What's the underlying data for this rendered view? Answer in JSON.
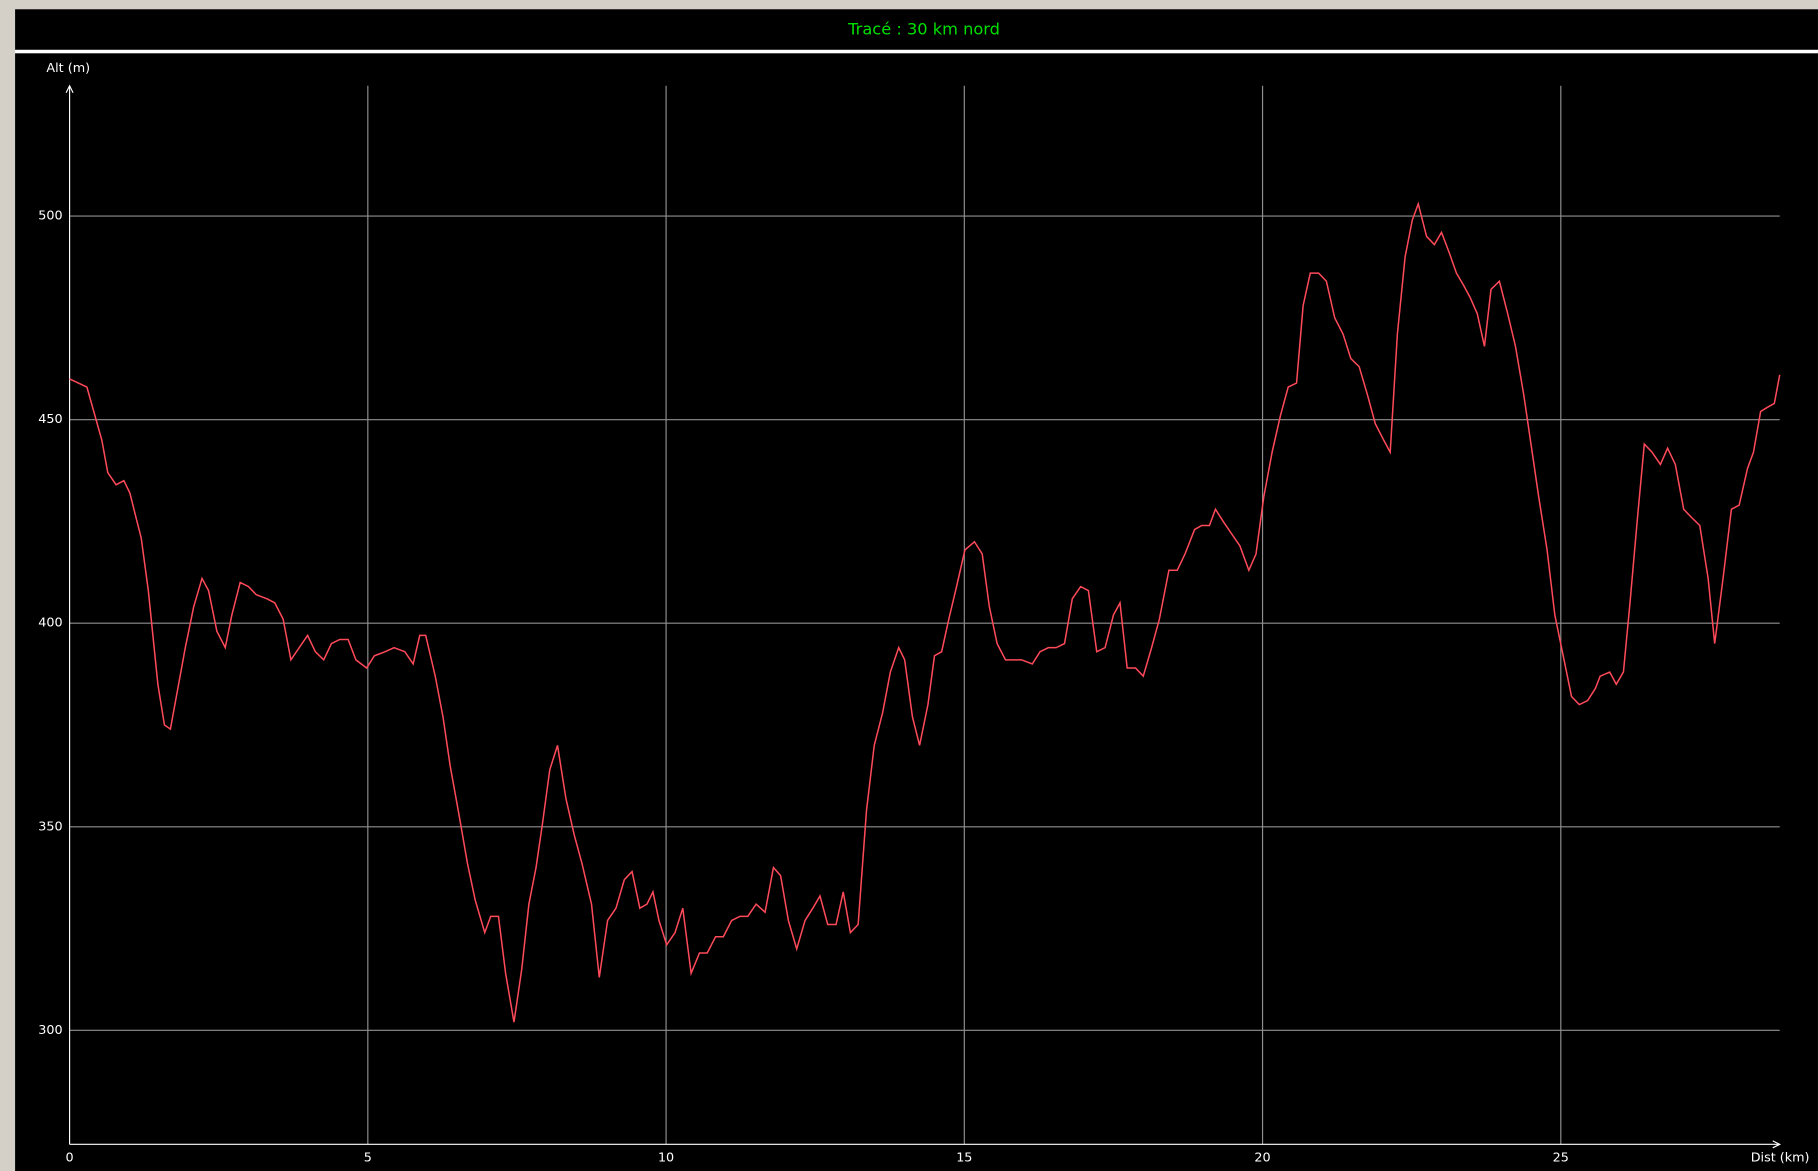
{
  "chart_data": {
    "type": "line",
    "title": "Tracé : 30 km nord",
    "y_label": "Alt (m)",
    "x_label": "Dist (km)",
    "x": [
      0,
      0.29,
      0.54,
      0.64,
      0.78,
      0.91,
      1.01,
      1.13,
      1.2,
      1.32,
      1.48,
      1.59,
      1.69,
      1.79,
      1.94,
      2.08,
      2.22,
      2.33,
      2.47,
      2.61,
      2.72,
      2.86,
      3.0,
      3.13,
      3.31,
      3.44,
      3.58,
      3.71,
      3.85,
      3.99,
      4.12,
      4.26,
      4.39,
      4.53,
      4.67,
      4.8,
      4.98,
      5.11,
      5.29,
      5.44,
      5.62,
      5.76,
      5.87,
      5.97,
      6.13,
      6.26,
      6.38,
      6.54,
      6.67,
      6.8,
      6.96,
      7.06,
      7.19,
      7.31,
      7.45,
      7.58,
      7.7,
      7.82,
      7.93,
      8.05,
      8.18,
      8.32,
      8.46,
      8.59,
      8.75,
      8.88,
      9.02,
      9.16,
      9.3,
      9.43,
      9.56,
      9.68,
      9.78,
      9.88,
      10.01,
      10.15,
      10.28,
      10.42,
      10.56,
      10.69,
      10.83,
      10.96,
      11.1,
      11.24,
      11.37,
      11.51,
      11.66,
      11.8,
      11.92,
      12.05,
      12.19,
      12.33,
      12.46,
      12.58,
      12.71,
      12.85,
      12.97,
      13.09,
      13.22,
      13.36,
      13.49,
      13.63,
      13.76,
      13.9,
      14.0,
      14.13,
      14.25,
      14.39,
      14.5,
      14.62,
      14.74,
      14.87,
      15.01,
      15.17,
      15.3,
      15.42,
      15.55,
      15.69,
      15.82,
      15.96,
      16.14,
      16.27,
      16.41,
      16.54,
      16.68,
      16.81,
      16.95,
      17.08,
      17.22,
      17.36,
      17.5,
      17.61,
      17.73,
      17.87,
      18.0,
      18.14,
      18.27,
      18.43,
      18.57,
      18.7,
      18.86,
      18.98,
      19.11,
      19.21,
      19.34,
      19.48,
      19.62,
      19.77,
      19.89,
      20.02,
      20.16,
      20.3,
      20.43,
      20.57,
      20.68,
      20.8,
      20.94,
      21.07,
      21.21,
      21.35,
      21.48,
      21.62,
      21.76,
      21.89,
      22.03,
      22.14,
      22.26,
      22.39,
      22.51,
      22.61,
      22.75,
      22.88,
      23.0,
      23.13,
      23.25,
      23.37,
      23.48,
      23.6,
      23.72,
      23.83,
      23.97,
      24.11,
      24.24,
      24.38,
      24.49,
      24.63,
      24.77,
      24.9,
      25.04,
      25.18,
      25.31,
      25.45,
      25.58,
      25.66,
      25.82,
      25.93,
      26.05,
      26.16,
      26.28,
      26.4,
      26.53,
      26.67,
      26.79,
      26.92,
      27.06,
      27.19,
      27.33,
      27.47,
      27.58,
      27.72,
      27.86,
      27.99,
      28.13,
      28.23,
      28.35,
      28.46,
      28.58,
      28.67
    ],
    "values": [
      460,
      458,
      445,
      437,
      434,
      435,
      432,
      425,
      421,
      408,
      385,
      375,
      374,
      382,
      394,
      404,
      411,
      408,
      398,
      394,
      402,
      410,
      409,
      407,
      406,
      405,
      401,
      391,
      394,
      397,
      393,
      391,
      395,
      396,
      396,
      391,
      389,
      392,
      393,
      394,
      393,
      390,
      397,
      397,
      387,
      377,
      365,
      352,
      341,
      332,
      324,
      328,
      328,
      314,
      302,
      315,
      331,
      340,
      351,
      364,
      370,
      357,
      348,
      341,
      331,
      313,
      327,
      330,
      337,
      339,
      330,
      331,
      334,
      327,
      321,
      324,
      330,
      314,
      319,
      319,
      323,
      323,
      327,
      328,
      328,
      331,
      329,
      340,
      338,
      327,
      320,
      327,
      330,
      333,
      326,
      326,
      334,
      324,
      326,
      354,
      370,
      378,
      388,
      394,
      391,
      377,
      370,
      380,
      392,
      393,
      401,
      409,
      418,
      420,
      417,
      404,
      395,
      391,
      391,
      391,
      390,
      393,
      394,
      394,
      395,
      406,
      409,
      408,
      393,
      394,
      402,
      405,
      389,
      389,
      387,
      394,
      401,
      413,
      413,
      417,
      423,
      424,
      424,
      428,
      425,
      422,
      419,
      413,
      417,
      431,
      442,
      451,
      458,
      459,
      478,
      486,
      486,
      484,
      475,
      471,
      465,
      463,
      456,
      449,
      445,
      442,
      471,
      490,
      499,
      503,
      495,
      493,
      496,
      491,
      486,
      483,
      480,
      476,
      468,
      482,
      484,
      476,
      468,
      456,
      445,
      431,
      418,
      402,
      392,
      382,
      380,
      381,
      384,
      387,
      388,
      385,
      388,
      405,
      425,
      444,
      442,
      439,
      443,
      439,
      428,
      426,
      424,
      411,
      395,
      411,
      428,
      429,
      438,
      442,
      452,
      453,
      454,
      461
    ],
    "color": "#ff4a5a",
    "xlim": [
      0,
      28.67
    ],
    "ylim": [
      272,
      532
    ],
    "xticks": [
      0,
      5,
      10,
      15,
      20,
      25
    ],
    "yticks": [
      300,
      350,
      400,
      450,
      500
    ],
    "grid": true
  }
}
